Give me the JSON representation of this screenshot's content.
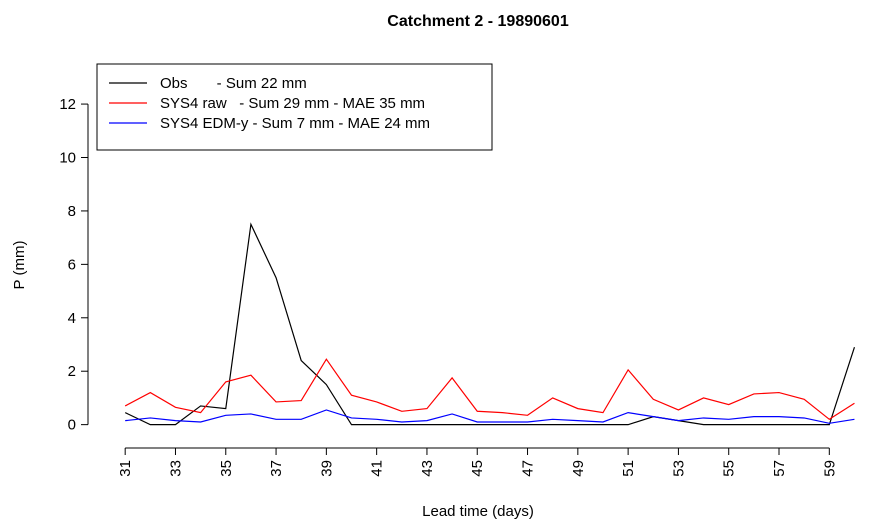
{
  "chart_data": {
    "type": "line",
    "title": "Catchment  2 - 19890601",
    "x_label": "Lead time (days)",
    "y_label": "P (mm)",
    "x": [
      31,
      32,
      33,
      34,
      35,
      36,
      37,
      38,
      39,
      40,
      41,
      42,
      43,
      44,
      45,
      46,
      47,
      48,
      49,
      50,
      51,
      52,
      53,
      54,
      55,
      56,
      57,
      58,
      59,
      60
    ],
    "series": [
      {
        "name": "Obs       - Sum 22 mm",
        "color": "#000000",
        "values": [
          0.45,
          0,
          0,
          0.7,
          0.6,
          7.5,
          5.5,
          2.4,
          1.5,
          0,
          0,
          0,
          0,
          0,
          0,
          0,
          0,
          0,
          0,
          0,
          0,
          0.3,
          0.15,
          0,
          0,
          0,
          0,
          0,
          0,
          2.9
        ]
      },
      {
        "name": "SYS4 raw   - Sum 29 mm - MAE 35 mm",
        "color": "#ff0000",
        "values": [
          0.7,
          1.2,
          0.65,
          0.45,
          1.6,
          1.85,
          0.85,
          0.9,
          2.45,
          1.1,
          0.85,
          0.5,
          0.6,
          1.75,
          0.5,
          0.45,
          0.35,
          1.0,
          0.6,
          0.45,
          2.05,
          0.95,
          0.55,
          1.0,
          0.75,
          1.15,
          1.2,
          0.95,
          0.2,
          0.8
        ]
      },
      {
        "name": "SYS4 EDM-y - Sum 7 mm - MAE 24 mm",
        "color": "#0000ff",
        "values": [
          0.15,
          0.25,
          0.15,
          0.1,
          0.35,
          0.4,
          0.2,
          0.2,
          0.55,
          0.25,
          0.2,
          0.1,
          0.15,
          0.4,
          0.1,
          0.1,
          0.1,
          0.2,
          0.15,
          0.1,
          0.45,
          0.3,
          0.15,
          0.25,
          0.2,
          0.3,
          0.3,
          0.25,
          0.05,
          0.2
        ]
      }
    ],
    "xlim": [
      29.8,
      60.3
    ],
    "ylim": [
      -0.5,
      13.5
    ],
    "xticks": [
      31,
      33,
      35,
      37,
      39,
      41,
      43,
      45,
      47,
      49,
      51,
      53,
      55,
      57,
      59
    ],
    "yticks": [
      0,
      2,
      4,
      6,
      8,
      10,
      12
    ],
    "legend": "top-left"
  }
}
